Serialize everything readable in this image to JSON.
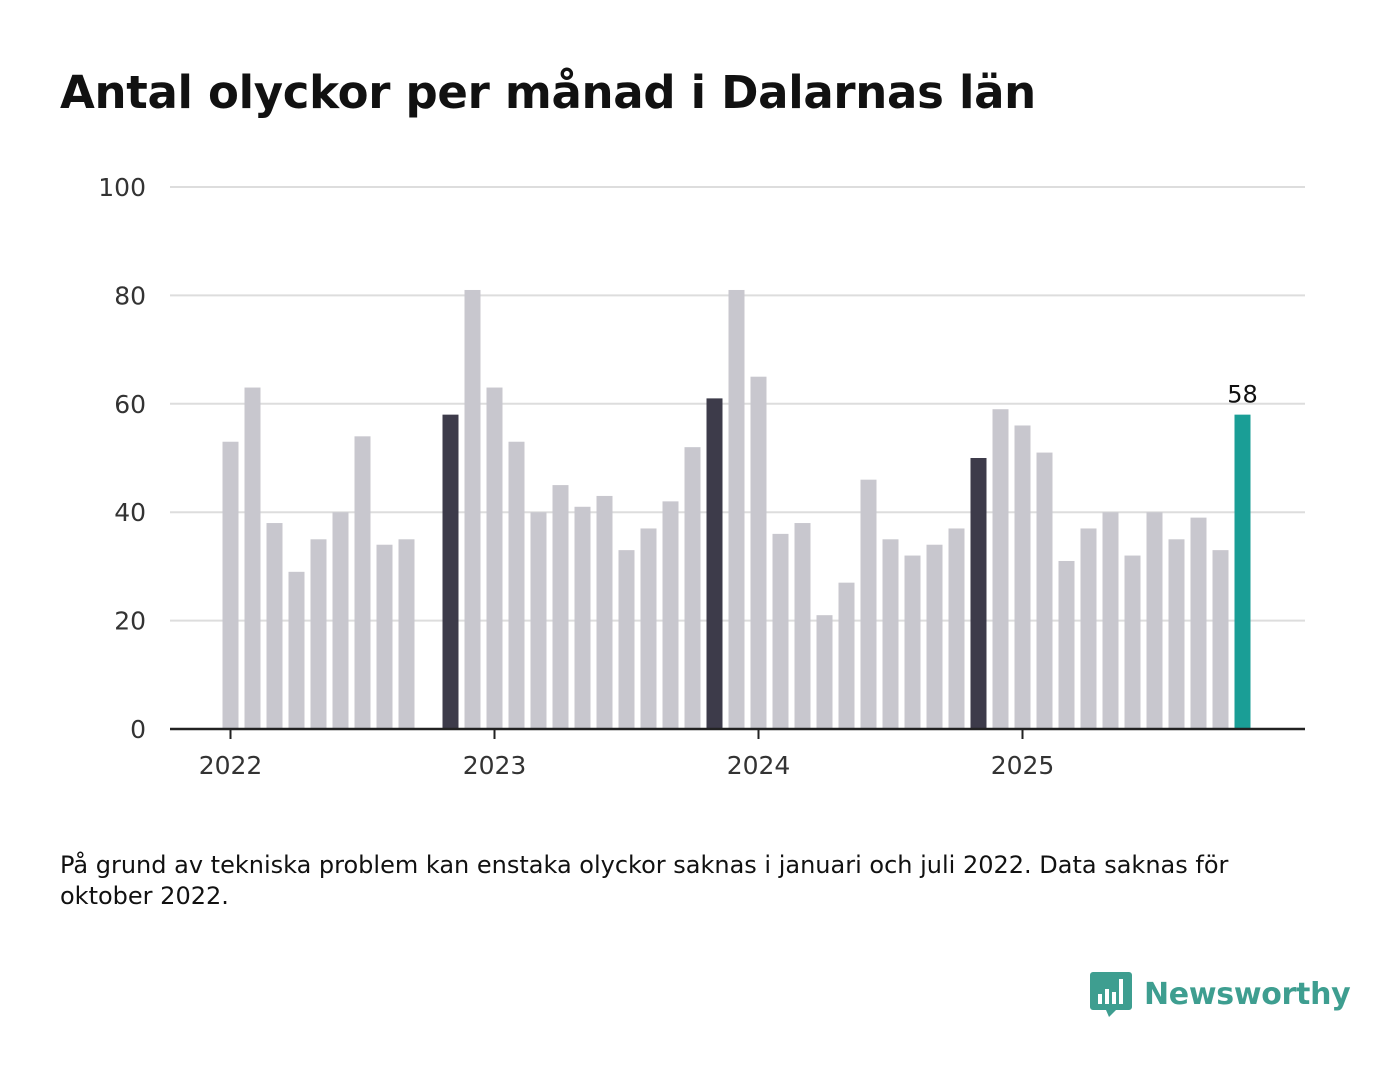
{
  "title": "Antal olyckor per månad i Dalarnas län",
  "footnote": "På grund av tekniska problem kan enstaka olyckor saknas i januari och juli 2022. Data saknas för oktober 2022.",
  "brand": {
    "name": "Newsworthy",
    "icon": "bar-chart-speech-bubble-icon"
  },
  "colors": {
    "bar_default": "#c8c7ce",
    "bar_december": "#3d3b4a",
    "bar_latest": "#1a9e96",
    "grid": "#dddddd",
    "axis": "#222222",
    "brand": "#3e9e90"
  },
  "chart_data": {
    "type": "bar",
    "title": "Antal olyckor per månad i Dalarnas län",
    "xlabel": "",
    "ylabel": "",
    "ylim": [
      0,
      100
    ],
    "yticks": [
      0,
      20,
      40,
      60,
      80,
      100
    ],
    "grid": true,
    "xtick_labels": [
      {
        "label": "2022",
        "month": "2022-01"
      },
      {
        "label": "2023",
        "month": "2023-01"
      },
      {
        "label": "2024",
        "month": "2024-01"
      },
      {
        "label": "2025",
        "month": "2025-01"
      }
    ],
    "latest_label": "58",
    "months": [
      {
        "month": "2022-01",
        "value": 53
      },
      {
        "month": "2022-02",
        "value": 63
      },
      {
        "month": "2022-03",
        "value": 38
      },
      {
        "month": "2022-04",
        "value": 29
      },
      {
        "month": "2022-05",
        "value": 35
      },
      {
        "month": "2022-06",
        "value": 40
      },
      {
        "month": "2022-07",
        "value": 54
      },
      {
        "month": "2022-08",
        "value": 34
      },
      {
        "month": "2022-09",
        "value": 35
      },
      {
        "month": "2022-10",
        "value": null
      },
      {
        "month": "2022-11",
        "value": 58,
        "highlight": "december"
      },
      {
        "month": "2022-12",
        "value": 81
      },
      {
        "month": "2023-01",
        "value": 63
      },
      {
        "month": "2023-02",
        "value": 53
      },
      {
        "month": "2023-03",
        "value": 40
      },
      {
        "month": "2023-04",
        "value": 45
      },
      {
        "month": "2023-05",
        "value": 41
      },
      {
        "month": "2023-06",
        "value": 43
      },
      {
        "month": "2023-07",
        "value": 33
      },
      {
        "month": "2023-08",
        "value": 37
      },
      {
        "month": "2023-09",
        "value": 42
      },
      {
        "month": "2023-10",
        "value": 52
      },
      {
        "month": "2023-11",
        "value": 61,
        "highlight": "december"
      },
      {
        "month": "2023-12",
        "value": 81
      },
      {
        "month": "2024-01",
        "value": 65
      },
      {
        "month": "2024-02",
        "value": 36
      },
      {
        "month": "2024-03",
        "value": 38
      },
      {
        "month": "2024-04",
        "value": 21
      },
      {
        "month": "2024-05",
        "value": 27
      },
      {
        "month": "2024-06",
        "value": 46
      },
      {
        "month": "2024-07",
        "value": 35
      },
      {
        "month": "2024-08",
        "value": 32
      },
      {
        "month": "2024-09",
        "value": 34
      },
      {
        "month": "2024-10",
        "value": 37
      },
      {
        "month": "2024-11",
        "value": 50,
        "highlight": "december"
      },
      {
        "month": "2024-12",
        "value": 59
      },
      {
        "month": "2025-01",
        "value": 56
      },
      {
        "month": "2025-02",
        "value": 51
      },
      {
        "month": "2025-03",
        "value": 31
      },
      {
        "month": "2025-04",
        "value": 37
      },
      {
        "month": "2025-05",
        "value": 40
      },
      {
        "month": "2025-06",
        "value": 32
      },
      {
        "month": "2025-07",
        "value": 40
      },
      {
        "month": "2025-08",
        "value": 35
      },
      {
        "month": "2025-09",
        "value": 39
      },
      {
        "month": "2025-10",
        "value": 33
      },
      {
        "month": "2025-11",
        "value": 58,
        "highlight": "latest"
      }
    ]
  }
}
